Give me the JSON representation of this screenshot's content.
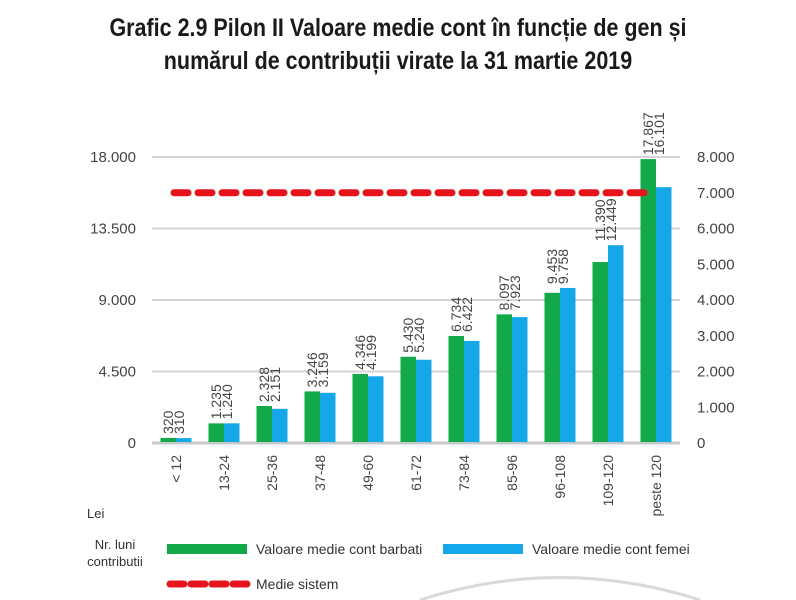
{
  "title_line1": "Grafic 2.9 Pilon II Valoare medie cont în funcție de gen și",
  "title_line2": "numărul de contribuții virate la 31 martie 2019",
  "chart_data": {
    "type": "bar",
    "title": "Grafic 2.9 Pilon II Valoare medie cont în funcție de gen și numărul de contribuții virate la 31 martie 2019",
    "xlabel": "Nr. luni contributii",
    "ylabel": "Lei",
    "categories": [
      "< 12",
      "13-24",
      "25-36",
      "37-48",
      "49-60",
      "61-72",
      "73-84",
      "85-96",
      "96-108",
      "109-120",
      "peste 120"
    ],
    "series": [
      {
        "name": "Valoare medie cont barbati",
        "color": "#13a84a",
        "values": [
          320,
          1235,
          2328,
          3246,
          4346,
          5430,
          6734,
          8097,
          9453,
          11390,
          17867
        ],
        "labels": [
          "320",
          "1.235",
          "2.328",
          "3.246",
          "4.346",
          "5.430",
          "6.734",
          "8.097",
          "9.453",
          "11.390",
          "17.867"
        ]
      },
      {
        "name": "Valoare medie cont femei",
        "color": "#14a8e8",
        "values": [
          310,
          1240,
          2151,
          3159,
          4199,
          5240,
          6422,
          7923,
          9758,
          12449,
          16101
        ],
        "labels": [
          "310",
          "1.240",
          "2.151",
          "3.159",
          "4.199",
          "5.240",
          "6.422",
          "7.923",
          "9.758",
          "12.449",
          "16.101"
        ]
      }
    ],
    "reference_line": {
      "name": "Medie sistem",
      "color": "#e8141c",
      "style": "dashed",
      "value_secondary_axis": 7000
    },
    "y_left": {
      "range": [
        0,
        18000
      ],
      "ticks": [
        0,
        4500,
        9000,
        13500,
        18000
      ],
      "tick_labels": [
        "0",
        "4.500",
        "9.000",
        "13.500",
        "18.000"
      ]
    },
    "y_right": {
      "range": [
        0,
        8000
      ],
      "ticks": [
        0,
        1000,
        2000,
        3000,
        4000,
        5000,
        6000,
        7000,
        8000
      ],
      "tick_labels": [
        "0",
        "1.000",
        "2.000",
        "3.000",
        "4.000",
        "5.000",
        "6.000",
        "7.000",
        "8.000"
      ]
    },
    "grid": true,
    "legend_position": "bottom"
  },
  "axis_unit_label": "Lei",
  "x_axis_title_line1": "Nr. luni",
  "x_axis_title_line2": "contributii",
  "legend": {
    "men": "Valoare medie cont barbati",
    "women": "Valoare medie cont femei",
    "system": "Medie sistem"
  }
}
